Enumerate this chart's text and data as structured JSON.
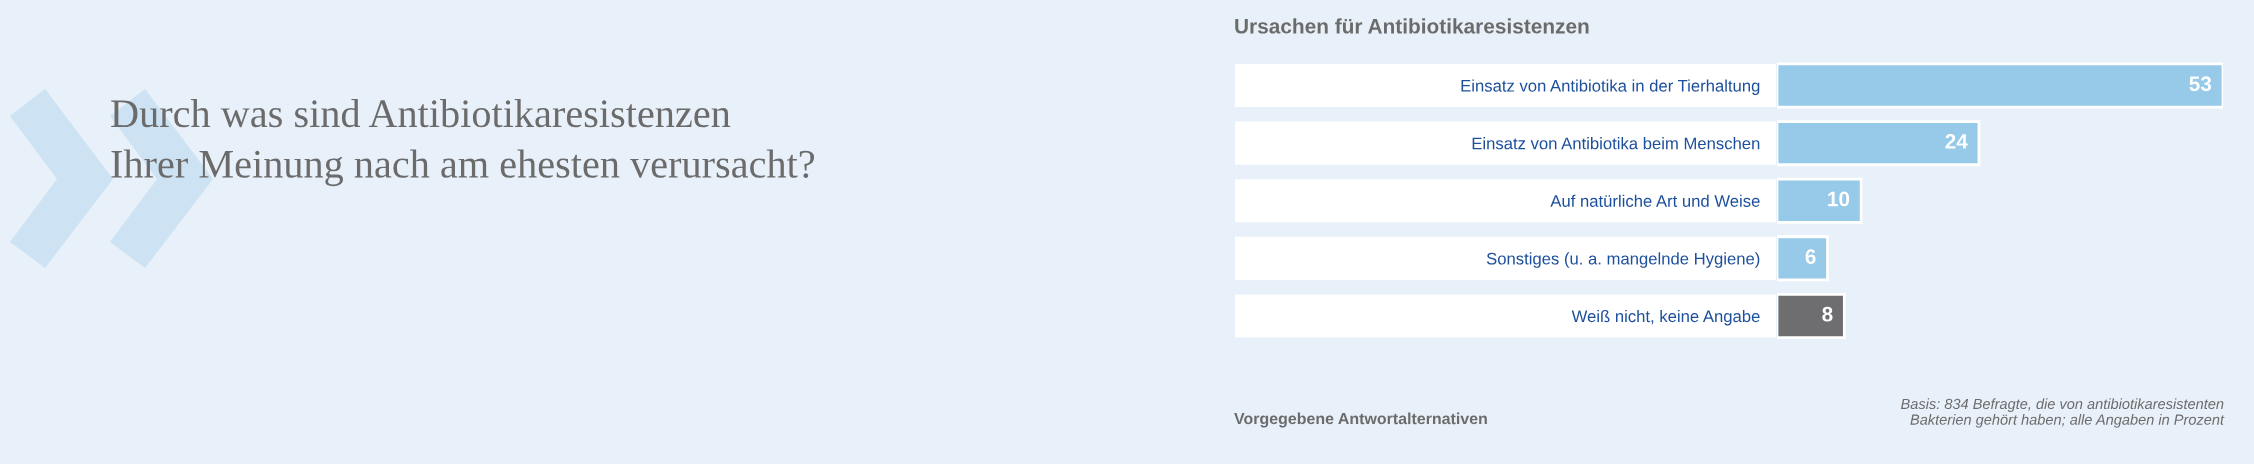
{
  "chart_data": {
    "type": "bar",
    "orientation": "horizontal",
    "title": "Durch was sind Antibiotikaresistenzen\nIhrer Meinung nach am ehesten verursacht?",
    "subtitle": "Ursachen für Antibiotikaresistenzen",
    "categories": [
      "Einsatz von Antibiotika in der Tierhaltung",
      "Einsatz von Antibiotika beim Menschen",
      "Auf natürliche Art und Weise",
      "Sonstiges (u. a. mangelnde Hygiene)",
      "Weiß nicht, keine Angabe"
    ],
    "values": [
      53,
      24,
      10,
      6,
      8
    ],
    "colors": [
      "#97c9e9",
      "#97c9e9",
      "#97c9e9",
      "#97c9e9",
      "#6e6e70"
    ],
    "data_labels": true,
    "tick_labels": "y",
    "annotations": [
      "Vorgegebene Antwortalternativen",
      "Basis: 834 Befragte, die von antibiotikaresistenten\nBakterien gehört haben; alle Angaben in Prozent"
    ]
  }
}
